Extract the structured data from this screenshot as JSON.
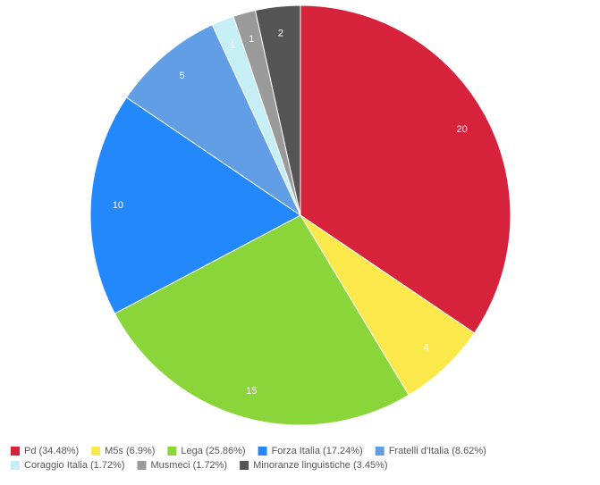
{
  "chart_data": {
    "type": "pie",
    "categories": [
      "Pd (34.48%)",
      "M5s (6.9%)",
      "Lega (25.86%)",
      "Forza Italia (17.24%)",
      "Fratelli d'Italia (8.62%)",
      "Coraggio Italia (1.72%)",
      "Musmeci (1.72%)",
      "Minoranze linguistiche (3.45%)"
    ],
    "values": [
      20,
      4,
      15,
      10,
      5,
      1,
      1,
      2
    ],
    "colors": [
      "#d6223b",
      "#fbe94c",
      "#8ad63a",
      "#2388fb",
      "#629ee6",
      "#c5eff5",
      "#9a9a9a",
      "#555555"
    ],
    "legend": "bottom"
  }
}
